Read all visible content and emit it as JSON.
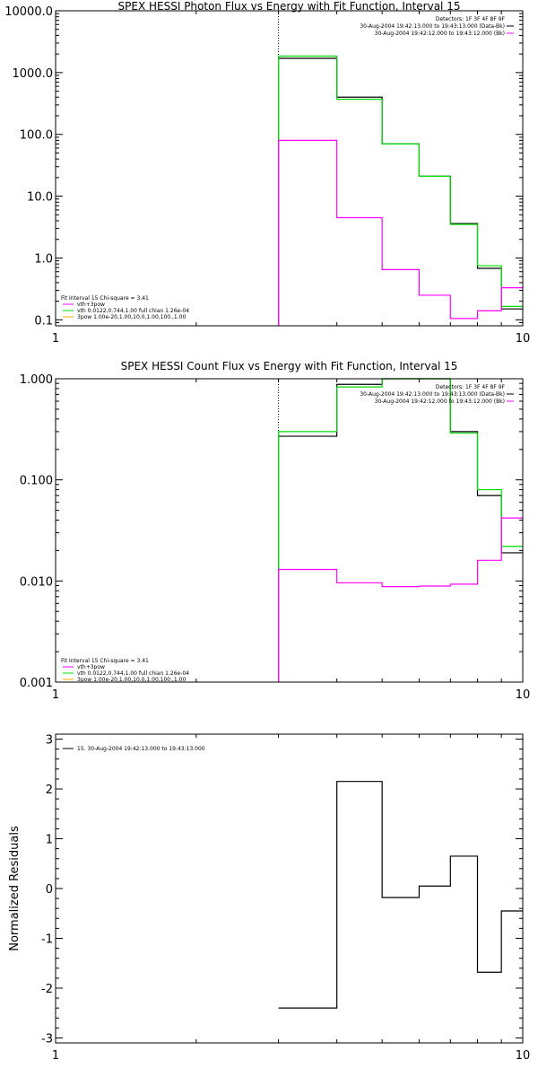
{
  "chart_data": [
    {
      "type": "line",
      "title": "SPEX HESSI Photon Flux vs Energy with Fit Function, Interval 15",
      "xlabel": "",
      "ylabel": "",
      "xscale": "log",
      "yscale": "log",
      "xlim": [
        1,
        10
      ],
      "ylim": [
        0.08,
        10000
      ],
      "x_tick_labels": [
        "1",
        "10"
      ],
      "y_ticks": [
        0.1,
        1,
        10,
        100,
        1000,
        10000
      ],
      "y_tick_labels": [
        "0.1",
        "1.0",
        "10.0",
        "100.0",
        "1000.0",
        "10000.0"
      ],
      "vline_x": 3.0,
      "bin_edges": [
        3.0,
        4.0,
        5.0,
        6.0,
        7.0,
        8.0,
        9.0,
        10.0
      ],
      "series": [
        {
          "color": "#000000",
          "values": [
            1700,
            400,
            70,
            21,
            3.6,
            0.68,
            0.15
          ]
        },
        {
          "color": "#00dd00",
          "values": [
            1850,
            370,
            70,
            21,
            3.5,
            0.75,
            0.165
          ]
        },
        {
          "color": "#ff00ff",
          "values": [
            80,
            4.5,
            0.65,
            0.25,
            0.105,
            0.14,
            0.33
          ]
        }
      ],
      "header_lines": [
        {
          "text": "Detectors: 1F 3F 4F 8F 9F",
          "color": "#000000"
        },
        {
          "text": "30-Aug-2004 19:42:13.000 to 19:43:13.000 (Data-Bk)",
          "color": "#000000"
        },
        {
          "text": "30-Aug-2004 19:42:12.000 to 19:43:12.000 (Bk)",
          "color": "#ff00ff"
        }
      ],
      "legend_lines": [
        {
          "text": "Fit Interval 15   Chi-square = 3.41",
          "color": "#000000"
        },
        {
          "text": "vth+3pow",
          "color": "#ff00ff"
        },
        {
          "text": "vth 0.0122,0.744,1.00  full chian 1.26e-04",
          "color": "#00dd00"
        },
        {
          "text": "3pow 1.00e-20,1.00,10.0,1.00,100.,1.00",
          "color": "#ffa500"
        }
      ]
    },
    {
      "type": "line",
      "title": "SPEX HESSI Count Flux vs Energy with Fit Function, Interval 15",
      "xlabel": "",
      "ylabel": "",
      "xscale": "log",
      "yscale": "log",
      "xlim": [
        1,
        10
      ],
      "ylim": [
        0.001,
        1.0
      ],
      "x_tick_labels": [
        "1",
        "10"
      ],
      "y_ticks": [
        0.001,
        0.01,
        0.1,
        1.0
      ],
      "y_tick_labels": [
        "0.001",
        "0.010",
        "0.100",
        "1.000"
      ],
      "vline_x": 3.0,
      "bin_edges": [
        3.0,
        4.0,
        5.0,
        6.0,
        7.0,
        8.0,
        9.0,
        10.0
      ],
      "series": [
        {
          "color": "#000000",
          "values": [
            0.27,
            0.88,
            1.0,
            1.0,
            0.3,
            0.07,
            0.019
          ]
        },
        {
          "color": "#00dd00",
          "values": [
            0.3,
            0.83,
            1.0,
            1.0,
            0.29,
            0.08,
            0.022
          ]
        },
        {
          "color": "#ff00ff",
          "values": [
            0.013,
            0.0096,
            0.0088,
            0.0089,
            0.0093,
            0.016,
            0.042
          ]
        }
      ],
      "header_lines": [
        {
          "text": "Detectors: 1F 3F 4F 8F 9F",
          "color": "#000000"
        },
        {
          "text": "30-Aug-2004 19:42:13.000 to 19:43:13.000 (Data-Bk)",
          "color": "#000000"
        },
        {
          "text": "30-Aug-2004 19:42:12.000 to 19:43:12.000 (Bk)",
          "color": "#ff00ff"
        }
      ],
      "legend_lines": [
        {
          "text": "Fit Interval 15   Chi-square = 3.41",
          "color": "#000000"
        },
        {
          "text": "vth+3pow",
          "color": "#ff00ff"
        },
        {
          "text": "vth 0.0122,0.744,1.00  full chian 1.26e-04",
          "color": "#00dd00"
        },
        {
          "text": "3pow 1.00e-20,1.00,10.0,1.00,100.,1.00",
          "color": "#ffa500"
        }
      ]
    },
    {
      "type": "line",
      "title": "",
      "xlabel": "",
      "ylabel": "Normalized Residuals",
      "xscale": "log",
      "yscale": "linear",
      "xlim": [
        1,
        10
      ],
      "ylim": [
        -3.1,
        3.1
      ],
      "x_tick_labels": [
        "1",
        "10"
      ],
      "y_ticks": [
        -3,
        -2,
        -1,
        0,
        1,
        2,
        3
      ],
      "y_tick_labels": [
        "-3",
        "-2",
        "-1",
        "0",
        "1",
        "2",
        "3"
      ],
      "bin_edges": [
        3.0,
        4.0,
        5.0,
        6.0,
        7.0,
        8.0,
        9.0,
        10.0
      ],
      "series": [
        {
          "name": "15. 30-Aug-2004 19:42:13.000 to 19:43:13.000",
          "color": "#000000",
          "values": [
            -2.4,
            2.15,
            -0.18,
            0.05,
            0.65,
            -1.68,
            -0.45
          ]
        }
      ],
      "header_lines": [],
      "legend_lines": [
        {
          "text": "15. 30-Aug-2004 19:42:13.000 to 19:43:13.000",
          "color": "#000000"
        }
      ]
    }
  ]
}
